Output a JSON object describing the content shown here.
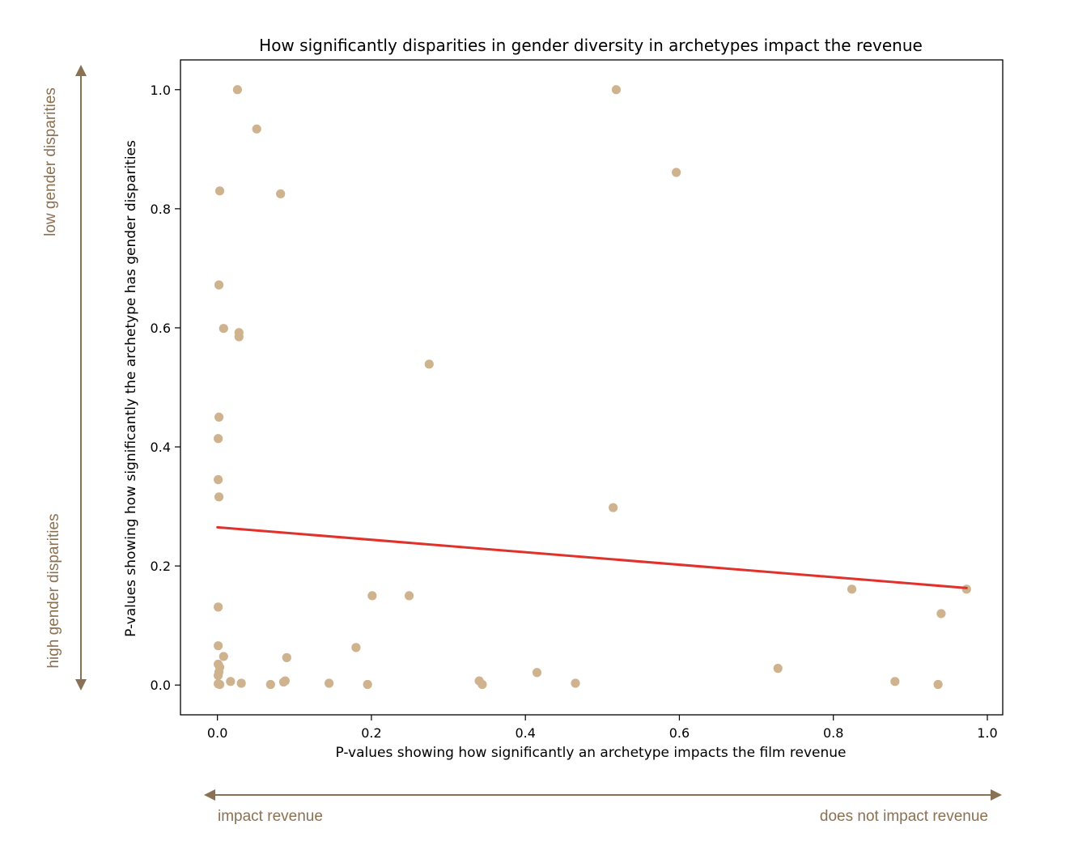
{
  "colors": {
    "point": "#cfb38f",
    "trend": "#e0312b",
    "annotation": "#8b7153",
    "axis": "#000000"
  },
  "chart_data": {
    "type": "scatter",
    "title": "How significantly disparities in gender diversity in archetypes impact the revenue",
    "xlabel": "P-values showing how significantly an archetype impacts the film revenue",
    "ylabel": "P-values showing how significantly the archetype has gender disparities",
    "xlim": [
      -0.048,
      1.02
    ],
    "ylim": [
      -0.05,
      1.05
    ],
    "grid": false,
    "xticks": [
      0.0,
      0.2,
      0.4,
      0.6,
      0.8,
      1.0
    ],
    "xtick_labels": [
      "0.0",
      "0.2",
      "0.4",
      "0.6",
      "0.8",
      "1.0"
    ],
    "yticks": [
      0.0,
      0.2,
      0.4,
      0.6,
      0.8,
      1.0
    ],
    "ytick_labels": [
      "0.0",
      "0.2",
      "0.4",
      "0.6",
      "0.8",
      "1.0"
    ],
    "points": [
      {
        "x": 0.026,
        "y": 1.0
      },
      {
        "x": 0.518,
        "y": 1.0
      },
      {
        "x": 0.051,
        "y": 0.934
      },
      {
        "x": 0.596,
        "y": 0.861
      },
      {
        "x": 0.003,
        "y": 0.83
      },
      {
        "x": 0.082,
        "y": 0.825
      },
      {
        "x": 0.002,
        "y": 0.672
      },
      {
        "x": 0.008,
        "y": 0.599
      },
      {
        "x": 0.028,
        "y": 0.592
      },
      {
        "x": 0.028,
        "y": 0.585
      },
      {
        "x": 0.275,
        "y": 0.539
      },
      {
        "x": 0.002,
        "y": 0.45
      },
      {
        "x": 0.001,
        "y": 0.414
      },
      {
        "x": 0.001,
        "y": 0.345
      },
      {
        "x": 0.002,
        "y": 0.316
      },
      {
        "x": 0.514,
        "y": 0.298
      },
      {
        "x": 0.824,
        "y": 0.161
      },
      {
        "x": 0.973,
        "y": 0.161
      },
      {
        "x": 0.201,
        "y": 0.15
      },
      {
        "x": 0.249,
        "y": 0.15
      },
      {
        "x": 0.001,
        "y": 0.131
      },
      {
        "x": 0.94,
        "y": 0.12
      },
      {
        "x": 0.001,
        "y": 0.066
      },
      {
        "x": 0.18,
        "y": 0.063
      },
      {
        "x": 0.008,
        "y": 0.048
      },
      {
        "x": 0.09,
        "y": 0.046
      },
      {
        "x": 0.001,
        "y": 0.035
      },
      {
        "x": 0.003,
        "y": 0.03
      },
      {
        "x": 0.728,
        "y": 0.028
      },
      {
        "x": 0.002,
        "y": 0.022
      },
      {
        "x": 0.415,
        "y": 0.021
      },
      {
        "x": 0.001,
        "y": 0.016
      },
      {
        "x": 0.34,
        "y": 0.007
      },
      {
        "x": 0.088,
        "y": 0.007
      },
      {
        "x": 0.017,
        "y": 0.006
      },
      {
        "x": 0.88,
        "y": 0.006
      },
      {
        "x": 0.086,
        "y": 0.005
      },
      {
        "x": 0.031,
        "y": 0.003
      },
      {
        "x": 0.145,
        "y": 0.003
      },
      {
        "x": 0.465,
        "y": 0.003
      },
      {
        "x": 0.001,
        "y": 0.002
      },
      {
        "x": 0.003,
        "y": 0.001
      },
      {
        "x": 0.069,
        "y": 0.001
      },
      {
        "x": 0.195,
        "y": 0.001
      },
      {
        "x": 0.344,
        "y": 0.001
      },
      {
        "x": 0.936,
        "y": 0.001
      }
    ],
    "trendline": {
      "x": [
        0.0,
        0.973
      ],
      "y": [
        0.265,
        0.163
      ]
    }
  },
  "annotations": {
    "y_top": "low gender disparities",
    "y_bottom": "high gender disparities",
    "x_left": "impact revenue",
    "x_right": "does not impact revenue"
  }
}
